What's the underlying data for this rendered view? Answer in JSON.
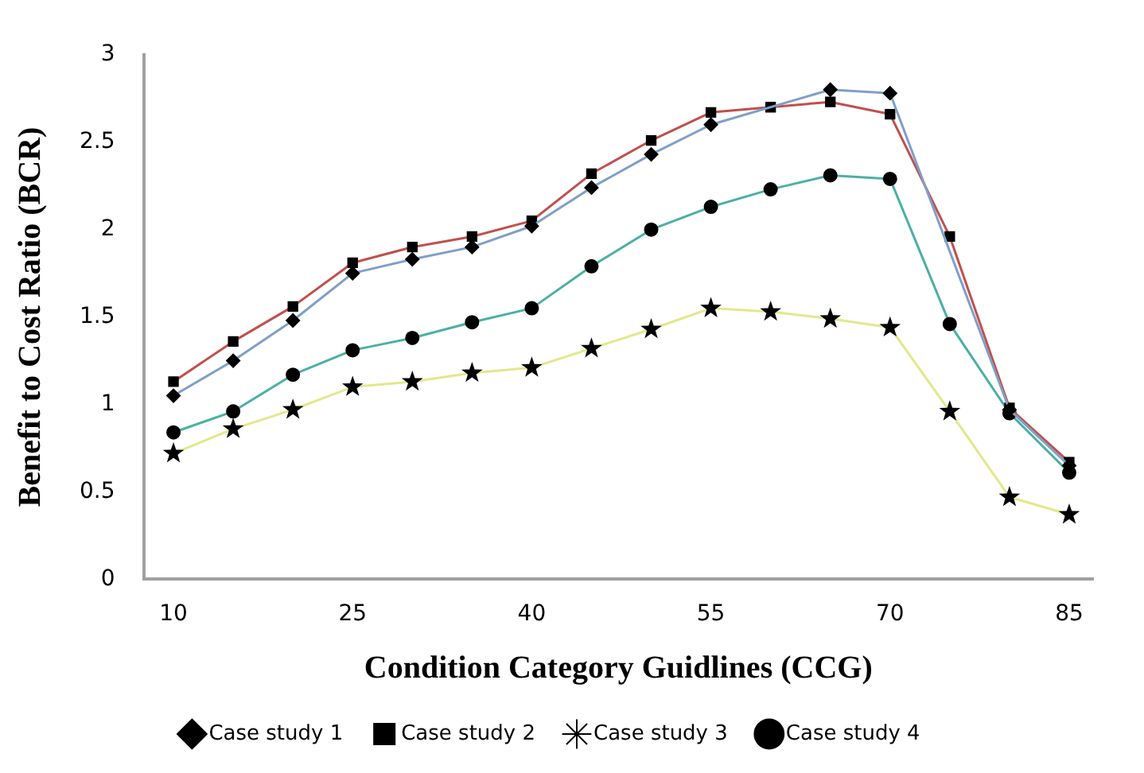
{
  "chart_data": {
    "type": "line",
    "xlabel": "Condition Category Guidlines (CCG)",
    "ylabel": "Benefit to Cost Ratio (BCR)",
    "x": [
      10,
      15,
      20,
      25,
      30,
      35,
      40,
      45,
      50,
      55,
      60,
      65,
      70,
      75,
      80,
      85
    ],
    "xlim": [
      7.5,
      87
    ],
    "xticks": [
      10,
      25,
      40,
      55,
      70,
      85
    ],
    "ylim": [
      0,
      3
    ],
    "yticks": [
      0,
      0.5,
      1,
      1.5,
      2,
      2.5,
      3
    ],
    "grid": false,
    "legend": "bottom",
    "line_style": "solid",
    "series": [
      {
        "name": "Case study 1",
        "color": "#7f9fc8",
        "marker": "diamond",
        "values": [
          1.05,
          1.25,
          1.48,
          1.75,
          1.83,
          1.9,
          2.02,
          2.24,
          2.43,
          2.6,
          null,
          2.8,
          2.78,
          null,
          0.97,
          0.65
        ]
      },
      {
        "name": "Case study 2",
        "color": "#c0504d",
        "marker": "square",
        "values": [
          1.13,
          1.36,
          1.56,
          1.81,
          1.9,
          1.96,
          2.05,
          2.32,
          2.51,
          2.67,
          2.7,
          2.73,
          2.66,
          1.96,
          0.98,
          0.67
        ]
      },
      {
        "name": "Case study 3",
        "color": "#e2e88a",
        "marker": "star",
        "values": [
          0.72,
          0.86,
          0.97,
          1.1,
          1.13,
          1.18,
          1.21,
          1.32,
          1.43,
          1.55,
          1.53,
          1.49,
          1.44,
          0.96,
          0.47,
          0.37
        ]
      },
      {
        "name": "Case study 4",
        "color": "#4bb0a4",
        "marker": "circle",
        "values": [
          0.84,
          0.96,
          1.17,
          1.31,
          1.38,
          1.47,
          1.55,
          1.79,
          2.0,
          2.13,
          2.23,
          2.31,
          2.29,
          1.46,
          0.95,
          0.61
        ]
      }
    ]
  }
}
